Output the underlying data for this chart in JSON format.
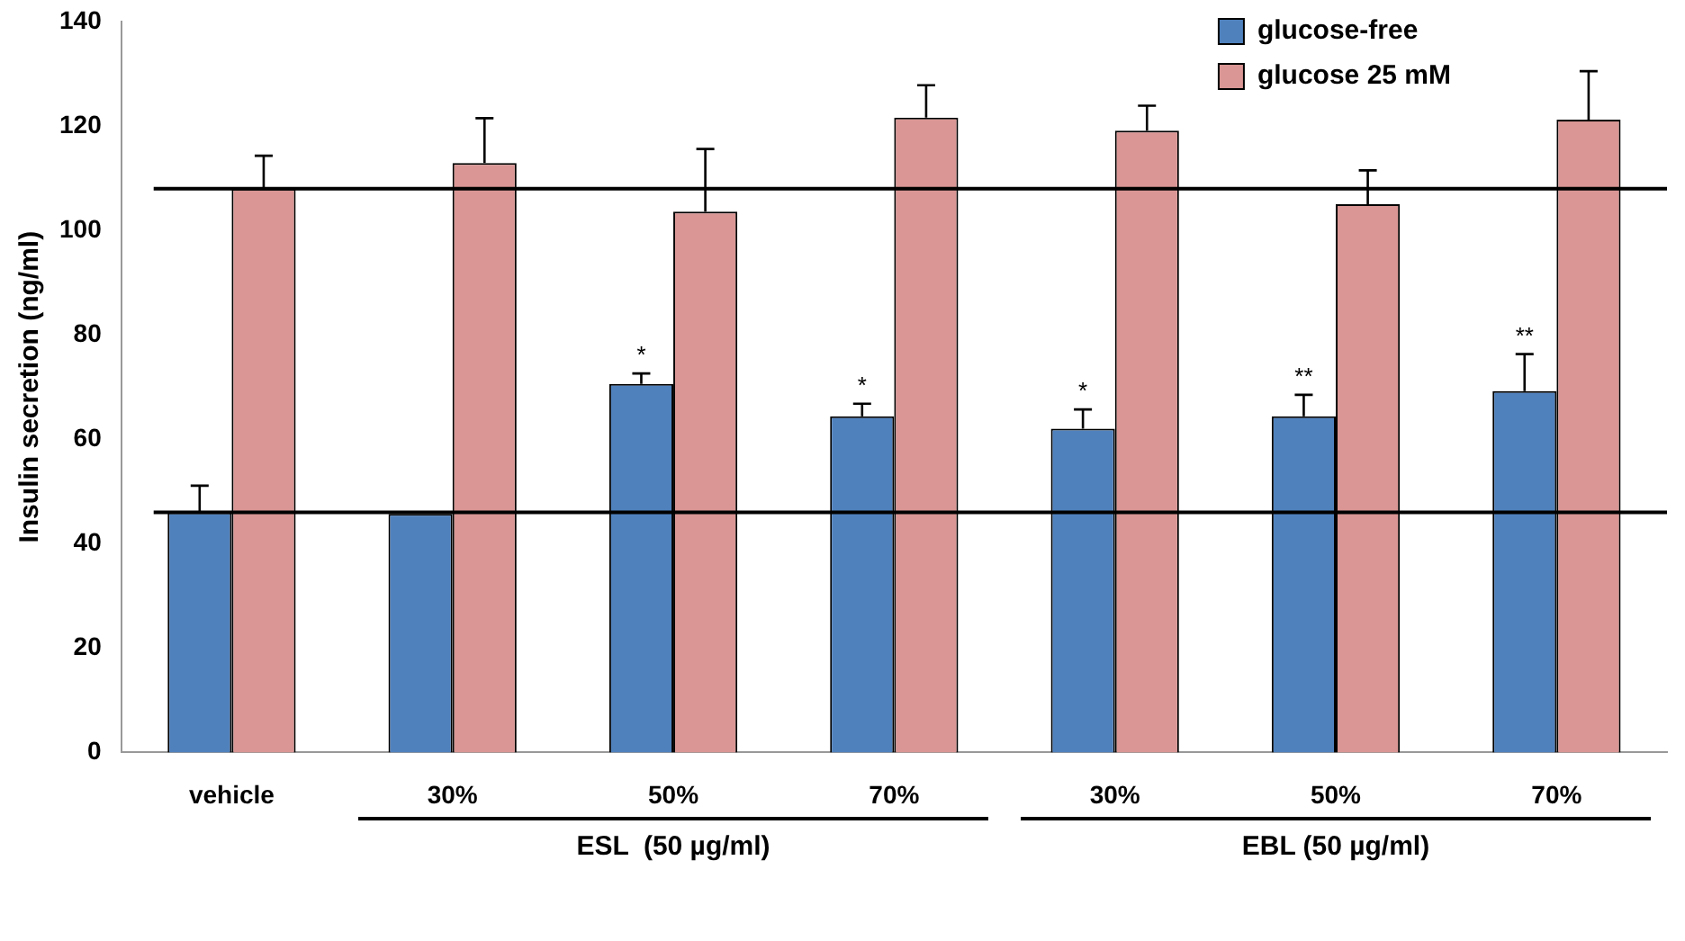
{
  "chart_data": {
    "type": "bar",
    "ylabel": "Insulin secretion (ng/ml)",
    "categories": [
      "vehicle",
      "30%",
      "50%",
      "70%",
      "30%",
      "50%",
      "70%"
    ],
    "series": [
      {
        "name": "glucose-free",
        "color": "#4f81bd",
        "values": [
          46,
          45.7,
          70.6,
          64.4,
          62,
          64.4,
          69.2
        ],
        "errors": [
          [
            46,
            51.1
          ],
          null,
          [
            70.6,
            72.6
          ],
          [
            64.4,
            66.8
          ],
          [
            62,
            65.7
          ],
          [
            64.4,
            68.5
          ],
          [
            69.2,
            76.3
          ]
        ],
        "value_labels": [
          null,
          null,
          "*",
          "*",
          "*",
          "**",
          "**"
        ]
      },
      {
        "name": "glucose 25 mM",
        "color": "#d99694",
        "values": [
          108,
          112.9,
          103.6,
          121.6,
          119.1,
          105,
          121.2
        ],
        "errors": [
          [
            108,
            114.3
          ],
          [
            112.9,
            121.5
          ],
          [
            103.6,
            115.6
          ],
          [
            121.6,
            127.8
          ],
          [
            119.1,
            123.9
          ],
          [
            105,
            111.5
          ],
          [
            121.2,
            130.5
          ]
        ]
      }
    ],
    "ylim": [
      0,
      140
    ],
    "yticks": [
      0,
      20,
      40,
      60,
      80,
      100,
      120,
      140
    ],
    "grid": false,
    "legend": "top right",
    "ref_lines": [
      {
        "axis": "y",
        "value": 108,
        "color": "#000000"
      },
      {
        "axis": "y",
        "value": 46,
        "color": "#000000"
      }
    ],
    "annotations": [
      "ESL  (50 µg/ml)",
      "EBL (50 µg/ml)"
    ]
  }
}
